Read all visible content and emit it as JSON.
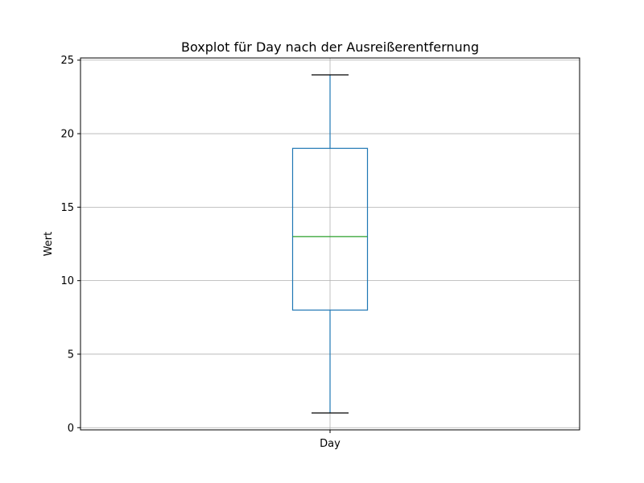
{
  "chart_data": {
    "type": "box",
    "title": "Boxplot für Day nach der Ausreißerentfernung",
    "xlabel": "",
    "ylabel": "Wert",
    "categories": [
      "Day"
    ],
    "series": [
      {
        "whisker_low": 1,
        "q1": 8,
        "median": 13,
        "q3": 19,
        "whisker_high": 24
      }
    ],
    "ylim": [
      -0.15,
      25.15
    ],
    "yticks": [
      0,
      5,
      10,
      15,
      20,
      25
    ],
    "grid": true,
    "colors": {
      "box": "#1f77b4",
      "whisker": "#1f77b4",
      "cap": "#000000",
      "median": "#2ca02c",
      "grid": "#b0b0b0"
    }
  }
}
